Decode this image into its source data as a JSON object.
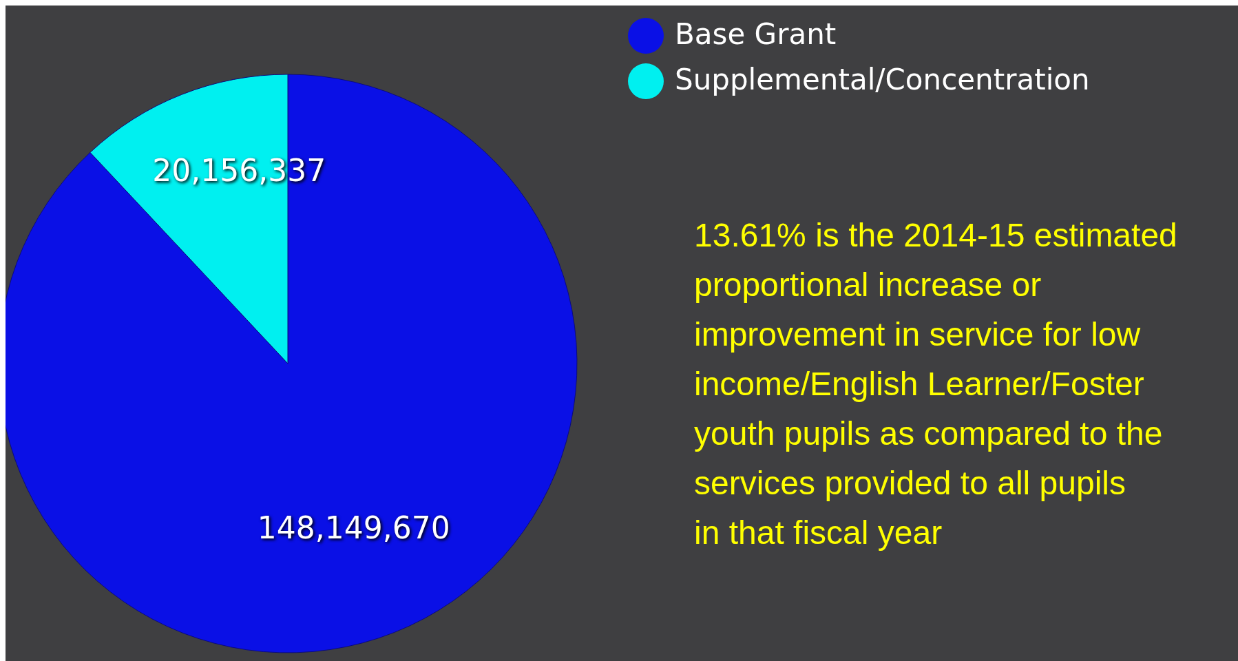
{
  "chart_data": {
    "type": "pie",
    "categories": [
      "Base Grant",
      "Supplemental/Concentration"
    ],
    "values": [
      148149670,
      20156337
    ],
    "colors": [
      "#0a10e6",
      "#00f0f0"
    ],
    "value_labels": [
      "148,149,670",
      "20,156,337"
    ],
    "legend": "top right",
    "annotations": [
      "13.61% is the 2014-15 estimated proportional increase or improvement in service for low income/English Learner/Foster youth pupils as compared to the services provided to all pupils in that fiscal year"
    ]
  }
}
